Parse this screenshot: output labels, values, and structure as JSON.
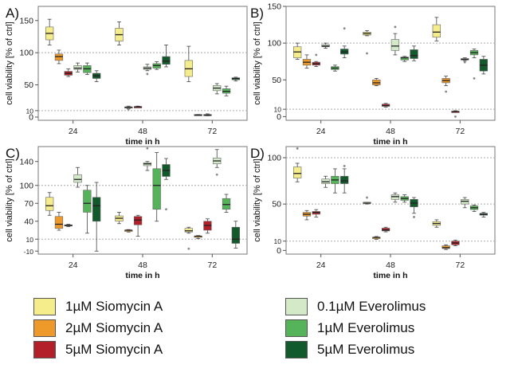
{
  "colors": {
    "1µM Siomycin A": "#f5ec8c",
    "2µM Siomycin A": "#ee9a2a",
    "5µM Siomycin A": "#b3202a",
    "0.1µM Everolimus": "#d4e9c8",
    "1µM Everolimus": "#55b35a",
    "5µM Everolimus": "#12592c"
  },
  "legend": [
    {
      "label": "1µM Siomycin A",
      "color": "#f5ec8c"
    },
    {
      "label": "0.1µM Everolimus",
      "color": "#d4e9c8"
    },
    {
      "label": "2µM Siomycin A",
      "color": "#ee9a2a"
    },
    {
      "label": "1µM Everolimus",
      "color": "#55b35a"
    },
    {
      "label": "5µM Siomycin A",
      "color": "#b3202a"
    },
    {
      "label": "5µM Everolimus",
      "color": "#12592c"
    }
  ],
  "chart_data": [
    {
      "panel": "A)",
      "type": "box",
      "xlabel": "time in h",
      "ylabel": "cell viability [% of ctrl]",
      "categories": [
        "24",
        "48",
        "72"
      ],
      "ylim": [
        -5,
        172
      ],
      "yticks": [
        0,
        10,
        50,
        100,
        150
      ],
      "ref_lines": [
        10,
        100
      ],
      "series": [
        {
          "name": "1µM Siomycin A",
          "boxes": [
            {
              "min": 112,
              "q1": 120,
              "median": 130,
              "q3": 140,
              "max": 152
            },
            {
              "min": 112,
              "q1": 118,
              "median": 128,
              "q3": 138,
              "max": 148
            },
            {
              "min": 55,
              "q1": 63,
              "median": 75,
              "q3": 88,
              "max": 110
            }
          ]
        },
        {
          "name": "2µM Siomycin A",
          "boxes": [
            {
              "min": 83,
              "q1": 88,
              "median": 94,
              "q3": 98,
              "max": 104
            },
            {
              "min": 13,
              "q1": 15,
              "median": 15,
              "q3": 16,
              "max": 17,
              "outliers": [
                12
              ]
            },
            {
              "min": 3,
              "q1": 3,
              "median": 3,
              "q3": 4,
              "max": 4
            }
          ]
        },
        {
          "name": "5µM Siomycin A",
          "boxes": [
            {
              "min": 63,
              "q1": 65,
              "median": 68,
              "q3": 71,
              "max": 75
            },
            {
              "min": 15,
              "q1": 15,
              "median": 16,
              "q3": 16,
              "max": 17
            },
            {
              "min": 2,
              "q1": 3,
              "median": 3,
              "q3": 4,
              "max": 5
            }
          ]
        },
        {
          "name": "0.1µM Everolimus",
          "boxes": [
            {
              "min": 70,
              "q1": 74,
              "median": 76,
              "q3": 80,
              "max": 84
            },
            {
              "min": 72,
              "q1": 74,
              "median": 76,
              "q3": 78,
              "max": 82,
              "outliers": [
                67
              ]
            },
            {
              "min": 36,
              "q1": 41,
              "median": 45,
              "q3": 49,
              "max": 52
            }
          ]
        },
        {
          "name": "1µM Everolimus",
          "boxes": [
            {
              "min": 66,
              "q1": 69,
              "median": 75,
              "q3": 80,
              "max": 84
            },
            {
              "min": 74,
              "q1": 76,
              "median": 80,
              "q3": 83,
              "max": 86
            },
            {
              "min": 33,
              "q1": 37,
              "median": 40,
              "q3": 44,
              "max": 48
            }
          ]
        },
        {
          "name": "5µM Everolimus",
          "boxes": [
            {
              "min": 55,
              "q1": 60,
              "median": 64,
              "q3": 68,
              "max": 72
            },
            {
              "min": 78,
              "q1": 82,
              "median": 87,
              "q3": 94,
              "max": 112
            },
            {
              "min": 56,
              "q1": 58,
              "median": 60,
              "q3": 61,
              "max": 62
            }
          ]
        }
      ]
    },
    {
      "panel": "B)",
      "type": "box",
      "xlabel": "time in h",
      "ylabel": "cell viability [% of ctrl]",
      "categories": [
        "24",
        "48",
        "72"
      ],
      "ylim": [
        -5,
        150
      ],
      "yticks": [
        0,
        10,
        50,
        100,
        150
      ],
      "ref_lines": [
        10,
        100
      ],
      "series": [
        {
          "name": "1µM Siomycin A",
          "boxes": [
            {
              "min": 78,
              "q1": 80,
              "median": 88,
              "q3": 95,
              "max": 100
            },
            {
              "min": 110,
              "q1": 111,
              "median": 113,
              "q3": 115,
              "max": 117,
              "outliers": [
                86
              ]
            },
            {
              "min": 103,
              "q1": 108,
              "median": 115,
              "q3": 125,
              "max": 135
            }
          ]
        },
        {
          "name": "2µM Siomycin A",
          "boxes": [
            {
              "min": 66,
              "q1": 70,
              "median": 74,
              "q3": 78,
              "max": 84
            },
            {
              "min": 42,
              "q1": 43,
              "median": 46,
              "q3": 50,
              "max": 52
            },
            {
              "min": 42,
              "q1": 46,
              "median": 49,
              "q3": 52,
              "max": 55,
              "outliers": [
                34
              ]
            }
          ]
        },
        {
          "name": "5µM Siomycin A",
          "boxes": [
            {
              "min": 68,
              "q1": 70,
              "median": 72,
              "q3": 74,
              "max": 75,
              "outliers": [
                84
              ]
            },
            {
              "min": 13,
              "q1": 14,
              "median": 15,
              "q3": 17,
              "max": 18
            },
            {
              "min": 6,
              "q1": 6,
              "median": 7,
              "q3": 7,
              "max": 8,
              "outliers": [
                0
              ]
            }
          ]
        },
        {
          "name": "0.1µM Everolimus",
          "boxes": [
            {
              "min": 93,
              "q1": 95,
              "median": 96,
              "q3": 98,
              "max": 100
            },
            {
              "min": 84,
              "q1": 90,
              "median": 96,
              "q3": 105,
              "max": 113,
              "outliers": [
                122
              ]
            },
            {
              "min": 76,
              "q1": 77,
              "median": 78,
              "q3": 79,
              "max": 80,
              "outliers": [
                74
              ]
            }
          ]
        },
        {
          "name": "1µM Everolimus",
          "boxes": [
            {
              "min": 62,
              "q1": 64,
              "median": 66,
              "q3": 68,
              "max": 70
            },
            {
              "min": 75,
              "q1": 77,
              "median": 80,
              "q3": 81,
              "max": 82
            },
            {
              "min": 80,
              "q1": 84,
              "median": 87,
              "q3": 90,
              "max": 92,
              "outliers": [
                52
              ]
            }
          ]
        },
        {
          "name": "5µM Everolimus",
          "boxes": [
            {
              "min": 80,
              "q1": 85,
              "median": 88,
              "q3": 92,
              "max": 96,
              "outliers": [
                120
              ]
            },
            {
              "min": 76,
              "q1": 79,
              "median": 83,
              "q3": 91,
              "max": 96
            },
            {
              "min": 58,
              "q1": 62,
              "median": 70,
              "q3": 78,
              "max": 82
            }
          ]
        }
      ]
    },
    {
      "panel": "C)",
      "type": "box",
      "xlabel": "time in h",
      "ylabel": "cell viability [% of ctrl]",
      "categories": [
        "24",
        "48",
        "72"
      ],
      "ylim": [
        -15,
        165
      ],
      "yticks": [
        -10,
        10,
        40,
        70,
        100,
        140
      ],
      "ref_lines": [
        10,
        100
      ],
      "series": [
        {
          "name": "1µM Siomycin A",
          "boxes": [
            {
              "min": 50,
              "q1": 58,
              "median": 66,
              "q3": 80,
              "max": 88
            },
            {
              "min": 36,
              "q1": 40,
              "median": 45,
              "q3": 49,
              "max": 55
            },
            {
              "min": 20,
              "q1": 22,
              "median": 24,
              "q3": 28,
              "max": 30,
              "outliers": [
                -6
              ]
            }
          ]
        },
        {
          "name": "2µM Siomycin A",
          "boxes": [
            {
              "min": 25,
              "q1": 28,
              "median": 35,
              "q3": 48,
              "max": 55
            },
            {
              "min": 22,
              "q1": 23,
              "median": 25,
              "q3": 25,
              "max": 26
            },
            {
              "min": 11,
              "q1": 13,
              "median": 15,
              "q3": 15,
              "max": 16
            }
          ]
        },
        {
          "name": "5µM Siomycin A",
          "boxes": [
            {
              "min": 31,
              "q1": 32,
              "median": 33,
              "q3": 34,
              "max": 35
            },
            {
              "min": 15,
              "q1": 34,
              "median": 42,
              "q3": 48,
              "max": 50
            },
            {
              "min": 20,
              "q1": 25,
              "median": 33,
              "q3": 40,
              "max": 44
            }
          ]
        },
        {
          "name": "0.1µM Everolimus",
          "boxes": [
            {
              "min": 97,
              "q1": 105,
              "median": 110,
              "q3": 118,
              "max": 130
            },
            {
              "min": 125,
              "q1": 133,
              "median": 136,
              "q3": 138,
              "max": 140,
              "outliers": [
                162
              ]
            },
            {
              "min": 130,
              "q1": 136,
              "median": 141,
              "q3": 146,
              "max": 160,
              "outliers": [
                118
              ]
            }
          ]
        },
        {
          "name": "1µM Everolimus",
          "boxes": [
            {
              "min": 20,
              "q1": 55,
              "median": 70,
              "q3": 92,
              "max": 100
            },
            {
              "min": 40,
              "q1": 60,
              "median": 100,
              "q3": 128,
              "max": 155
            },
            {
              "min": 55,
              "q1": 60,
              "median": 68,
              "q3": 78,
              "max": 85
            }
          ]
        },
        {
          "name": "5µM Everolimus",
          "boxes": [
            {
              "min": -10,
              "q1": 40,
              "median": 66,
              "q3": 80,
              "max": 105
            },
            {
              "min": 110,
              "q1": 115,
              "median": 125,
              "q3": 135,
              "max": 145,
              "outliers": [
                60
              ]
            },
            {
              "min": -5,
              "q1": 3,
              "median": 10,
              "q3": 30,
              "max": 40
            }
          ]
        }
      ]
    },
    {
      "panel": "D)",
      "type": "box",
      "xlabel": "time in h",
      "ylabel": "cell viability [% of ctrl]",
      "categories": [
        "24",
        "48",
        "72"
      ],
      "ylim": [
        -4,
        112
      ],
      "yticks": [
        0,
        10,
        50,
        100
      ],
      "ref_lines": [
        10,
        50,
        100
      ],
      "series": [
        {
          "name": "1µM Siomycin A",
          "boxes": [
            {
              "min": 74,
              "q1": 78,
              "median": 83,
              "q3": 90,
              "max": 94,
              "outliers": [
                110
              ]
            },
            {
              "min": 50,
              "q1": 51,
              "median": 51,
              "q3": 52,
              "max": 52,
              "outliers": [
                57
              ]
            },
            {
              "min": 25,
              "q1": 27,
              "median": 29,
              "q3": 31,
              "max": 33
            }
          ]
        },
        {
          "name": "2µM Siomycin A",
          "boxes": [
            {
              "min": 33,
              "q1": 37,
              "median": 39,
              "q3": 41,
              "max": 43
            },
            {
              "min": 12,
              "q1": 13,
              "median": 14,
              "q3": 14,
              "max": 15
            },
            {
              "min": 1,
              "q1": 2,
              "median": 3,
              "q3": 5,
              "max": 6
            }
          ]
        },
        {
          "name": "5µM Siomycin A",
          "boxes": [
            {
              "min": 36,
              "q1": 39,
              "median": 41,
              "q3": 42,
              "max": 44
            },
            {
              "min": 20,
              "q1": 21,
              "median": 22,
              "q3": 24,
              "max": 25
            },
            {
              "min": 5,
              "q1": 6,
              "median": 8,
              "q3": 10,
              "max": 11
            }
          ]
        },
        {
          "name": "0.1µM Everolimus",
          "boxes": [
            {
              "min": 68,
              "q1": 72,
              "median": 74,
              "q3": 77,
              "max": 80
            },
            {
              "min": 52,
              "q1": 55,
              "median": 58,
              "q3": 60,
              "max": 62
            },
            {
              "min": 46,
              "q1": 50,
              "median": 53,
              "q3": 55,
              "max": 57
            }
          ]
        },
        {
          "name": "1µM Everolimus",
          "boxes": [
            {
              "min": 62,
              "q1": 72,
              "median": 76,
              "q3": 80,
              "max": 88
            },
            {
              "min": 52,
              "q1": 54,
              "median": 56,
              "q3": 58,
              "max": 60
            },
            {
              "min": 42,
              "q1": 44,
              "median": 46,
              "q3": 48,
              "max": 49
            }
          ]
        },
        {
          "name": "5µM Everolimus",
          "boxes": [
            {
              "min": 62,
              "q1": 72,
              "median": 75,
              "q3": 80,
              "max": 88,
              "outliers": [
                91
              ]
            },
            {
              "min": 40,
              "q1": 47,
              "median": 51,
              "q3": 55,
              "max": 57,
              "outliers": [
                36
              ]
            },
            {
              "min": 36,
              "q1": 38,
              "median": 39,
              "q3": 40,
              "max": 41
            }
          ]
        }
      ]
    }
  ]
}
